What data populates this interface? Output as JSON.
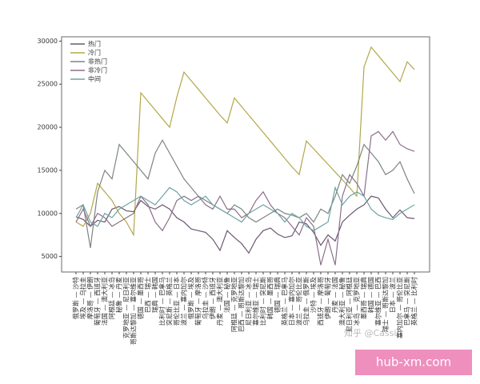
{
  "chart_data": {
    "type": "line",
    "categories": [
      "俄罗斯 — 沙特",
      "埃及 — 乌拉圭",
      "摩洛哥 — 伊朗",
      "葡萄牙 — 西班牙",
      "法国 — 澳大利亚",
      "阿根廷 — 冰岛",
      "秘鲁 — 丹麦",
      "克罗地亚 — 尼日利亚",
      "哥斯达黎加 — 塞尔维亚",
      "德国 — 墨西哥",
      "巴西 — 瑞士",
      "瑞典 — 韩国",
      "比利时 — 巴拿马",
      "突尼斯 — 英格兰",
      "哥伦比亚 — 日本",
      "波兰 — 塞内加尔",
      "俄罗斯 — 埃及",
      "葡萄牙 — 摩洛哥",
      "乌拉圭 — 沙特",
      "伊朗 — 西班牙",
      "丹麦 — 澳大利亚",
      "法国 — 秘鲁",
      "阿根廷 — 克罗地亚",
      "巴西 — 哥斯达黎加",
      "尼日利亚 — 冰岛",
      "塞尔维亚 — 瑞士",
      "比利时 — 突尼斯",
      "韩国 — 墨西哥",
      "德国 — 瑞典",
      "英格兰 — 巴拿马",
      "日本 — 塞内加尔",
      "波兰 — 哥伦比亚",
      "乌拉圭 — 俄罗斯",
      "沙特 — 埃及",
      "西班牙 — 摩洛哥",
      "伊朗 — 葡萄牙",
      "丹麦 — 法国",
      "澳大利亚 — 秘鲁",
      "尼日利亚 — 阿根廷",
      "冰岛 — 克罗地亚",
      "墨西哥 — 瑞典",
      "韩国 — 德国",
      "塞尔维亚 — 巴西",
      "瑞士 — 哥斯达黎加",
      "日本 — 波兰",
      "塞内加尔 — 哥伦比亚",
      "巴拿马 — 突尼斯",
      "英格兰 — 比利时"
    ],
    "series": [
      {
        "name": "热门",
        "color": "#6b5872",
        "values": [
          9600,
          9300,
          8500,
          9200,
          9000,
          10500,
          10800,
          10300,
          10200,
          11500,
          10800,
          10500,
          11000,
          10500,
          9500,
          9000,
          8200,
          8000,
          7800,
          7000,
          5700,
          8000,
          7200,
          6500,
          5400,
          7000,
          8000,
          8300,
          7600,
          7200,
          7400,
          9000,
          8800,
          7800,
          6300,
          7500,
          6800,
          9000,
          9800,
          10500,
          11000,
          12000,
          11800,
          10500,
          9500,
          10400,
          9500,
          9400
        ]
      },
      {
        "name": "冷门",
        "color": "#b3a74a",
        "values": [
          9000,
          8500,
          10000,
          13500,
          12500,
          11500,
          10000,
          9000,
          7500,
          24000,
          23000,
          22000,
          21000,
          20000,
          23500,
          26400,
          25400,
          24400,
          23400,
          22400,
          21400,
          20500,
          23400,
          22400,
          21400,
          20400,
          19400,
          18400,
          17400,
          16400,
          15400,
          14500,
          18400,
          17500,
          16600,
          15700,
          14800,
          13900,
          13000,
          12000,
          27000,
          29300,
          28300,
          27300,
          26300,
          25300,
          27600,
          26700
        ]
      },
      {
        "name": "非热门",
        "color": "#7d8680",
        "values": [
          10500,
          11000,
          6000,
          12500,
          15000,
          14000,
          18000,
          17000,
          16000,
          15000,
          14000,
          17000,
          18500,
          17000,
          15500,
          14000,
          13000,
          12000,
          11500,
          11000,
          10500,
          10000,
          11000,
          10500,
          9500,
          9000,
          9500,
          10000,
          10500,
          10000,
          9800,
          9500,
          10000,
          9000,
          10500,
          10000,
          12000,
          14500,
          13500,
          15500,
          18000,
          17000,
          16000,
          14500,
          15000,
          16000,
          14000,
          12300
        ]
      },
      {
        "name": "非冷门",
        "color": "#8c6f8a",
        "values": [
          9000,
          10500,
          8500,
          10000,
          9500,
          8500,
          9000,
          9500,
          10000,
          12000,
          11000,
          9000,
          8000,
          9500,
          11500,
          12000,
          11500,
          12000,
          11000,
          10500,
          12000,
          10500,
          10500,
          9500,
          10000,
          11500,
          12500,
          11000,
          10000,
          9500,
          8500,
          7500,
          9500,
          8500,
          4000,
          7000,
          4000,
          12000,
          14500,
          13500,
          12000,
          19000,
          19500,
          18500,
          19500,
          18000,
          17500,
          17200
        ]
      },
      {
        "name": "中间",
        "color": "#6fa3a2",
        "values": [
          9500,
          11000,
          9000,
          8500,
          10000,
          9500,
          10500,
          11000,
          11500,
          12000,
          11500,
          11000,
          12000,
          13000,
          12500,
          11500,
          11000,
          11500,
          12000,
          11000,
          10500,
          10000,
          9500,
          9000,
          10000,
          10500,
          11000,
          10500,
          10000,
          9000,
          10000,
          9500,
          8500,
          8000,
          8500,
          9000,
          13000,
          11000,
          12000,
          12500,
          12000,
          10500,
          9800,
          9500,
          9300,
          10000,
          10500,
          11000
        ]
      }
    ],
    "ylim": [
      3200,
      30500
    ],
    "yticks": [
      5000,
      10000,
      15000,
      20000,
      25000,
      30000
    ],
    "legend": "upper left"
  },
  "watermark": "知乎 @Cassin",
  "badge": "hub-xm.com"
}
